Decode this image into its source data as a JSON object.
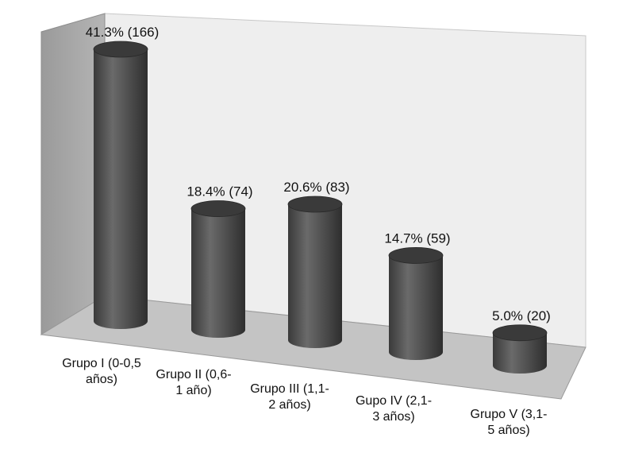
{
  "chart_data": {
    "type": "bar",
    "style": "3d-cylinder",
    "categories": [
      [
        "Grupo I (0-0,5",
        "años)"
      ],
      [
        "Grupo II (0,6-",
        "1 año)"
      ],
      [
        "Grupo III (1,1-",
        "2 años)"
      ],
      [
        "Gupo IV (2,1-",
        "3 años)"
      ],
      [
        "Grupo V (3,1-",
        "5 años)"
      ]
    ],
    "values": [
      166,
      74,
      83,
      59,
      20
    ],
    "data_labels": [
      "41.3% (166)",
      "18.4% (74)",
      "20.6% (83)",
      "14.7% (59)",
      "5.0% (20)"
    ],
    "title": "",
    "xlabel": "",
    "ylabel": "",
    "ylim": [
      0,
      180
    ],
    "grid": false,
    "legend": "none",
    "colors": {
      "bar_body": "#4a4a4a",
      "bar_top": "#3a3a3a",
      "floor": "#c4c4c4",
      "side_wall": "#a9a9a9",
      "back_wall": "#eeeeee"
    }
  }
}
